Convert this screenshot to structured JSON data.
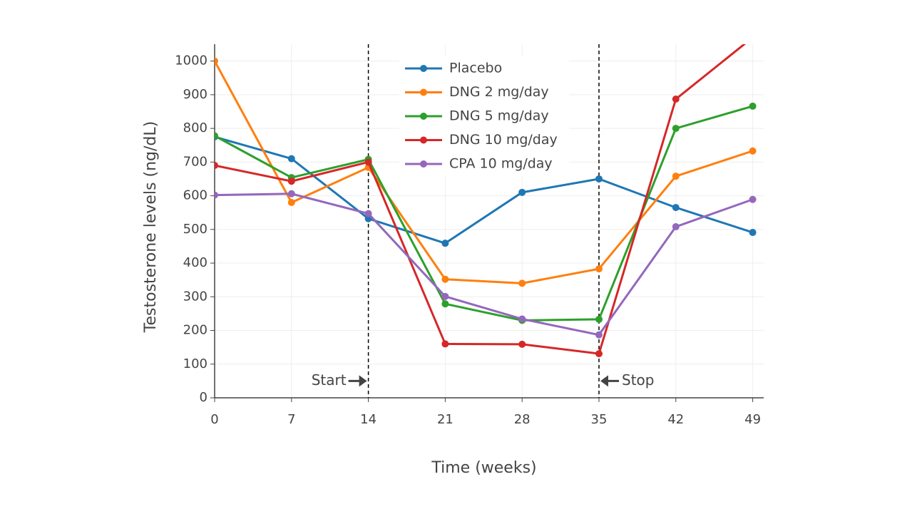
{
  "chart_data": {
    "type": "line",
    "x_label": "Time (weeks)",
    "y_label": "Testosterone levels (ng/dL)",
    "x": [
      0,
      7,
      14,
      21,
      28,
      35,
      42,
      49
    ],
    "xlim": [
      0,
      50
    ],
    "xticks": [
      0,
      7,
      14,
      21,
      28,
      35,
      42,
      49
    ],
    "ylim": [
      0,
      1050
    ],
    "yticks": [
      0,
      100,
      200,
      300,
      400,
      500,
      600,
      700,
      800,
      900,
      1000
    ],
    "grid": true,
    "legend": "top",
    "series": [
      {
        "name": "Placebo",
        "color": "#1f77b4",
        "values": [
          775,
          710,
          532,
          459,
          610,
          650,
          565,
          491
        ]
      },
      {
        "name": "DNG 2 mg/day",
        "color": "#ff7f0e",
        "values": [
          1000,
          580,
          684,
          352,
          340,
          383,
          658,
          733
        ]
      },
      {
        "name": "DNG 5 mg/day",
        "color": "#2ca02c",
        "values": [
          778,
          654,
          708,
          279,
          230,
          233,
          800,
          866
        ]
      },
      {
        "name": "DNG 10 mg/day",
        "color": "#d62728",
        "values": [
          690,
          643,
          700,
          160,
          159,
          131,
          887,
          1070
        ]
      },
      {
        "name": "CPA 10 mg/day",
        "color": "#9467bd",
        "values": [
          602,
          606,
          547,
          301,
          234,
          187,
          508,
          589
        ]
      }
    ],
    "vlines": [
      14,
      35
    ],
    "annotations": [
      {
        "text": "Start",
        "x": 14,
        "y": 50,
        "side": "left"
      },
      {
        "text": "Stop",
        "x": 35,
        "y": 50,
        "side": "right"
      }
    ]
  }
}
